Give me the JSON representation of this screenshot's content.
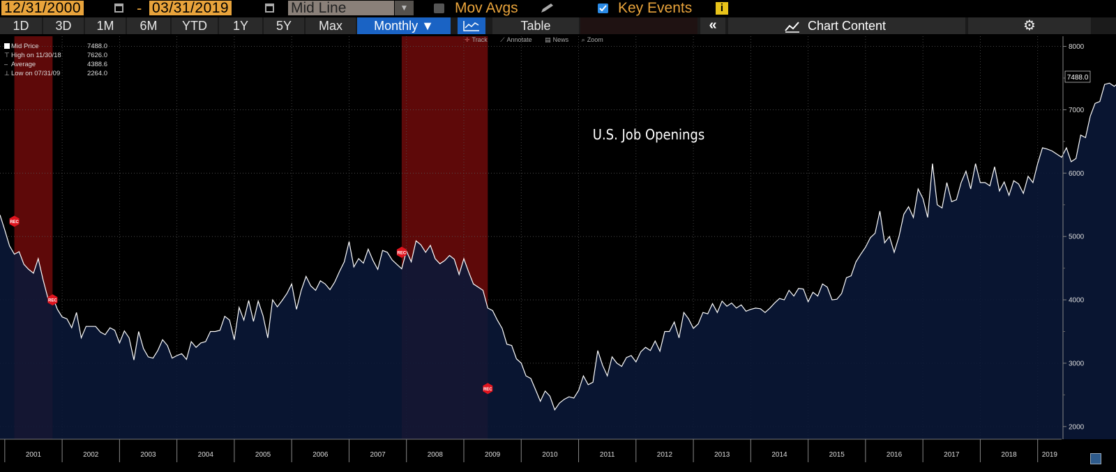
{
  "toolbar": {
    "start_date": "12/31/2000",
    "end_date": "03/31/2019",
    "date_dash": "-",
    "line_type": "Mid Line",
    "mov_avgs_label": "Mov Avgs",
    "key_events_label": "Key Events",
    "info_glyph": "i"
  },
  "periods": [
    {
      "label": "1D",
      "selected": false
    },
    {
      "label": "3D",
      "selected": false
    },
    {
      "label": "1M",
      "selected": false
    },
    {
      "label": "6M",
      "selected": false
    },
    {
      "label": "YTD",
      "selected": false
    },
    {
      "label": "1Y",
      "selected": false
    },
    {
      "label": "5Y",
      "selected": false
    },
    {
      "label": "Max",
      "selected": false
    },
    {
      "label": "Monthly ▼",
      "selected": true
    }
  ],
  "buttons": {
    "table_label": "Table",
    "collapse_glyph": "«",
    "chart_content_label": "Chart Content",
    "settings_glyph": "⚙"
  },
  "sub_tools": {
    "track": "Track",
    "annotate": "Annotate",
    "news": "News",
    "zoom": "Zoom"
  },
  "legend": {
    "mid_label": "Mid Price",
    "mid_value": "7488.0",
    "high_label": "High on 11/30/18",
    "high_value": "7626.0",
    "avg_label": "Average",
    "avg_value": "4388.6",
    "low_label": "Low on 07/31/09",
    "low_value": "2264.0"
  },
  "colors": {
    "accent_orange": "#e8a33b",
    "selected_blue": "#1a63c4",
    "series_line": "#ffffff",
    "area_fill": "#0a1838",
    "recession_band": "#6e0b0b"
  },
  "chart_data": {
    "type": "area",
    "title": "U.S. Job Openings",
    "frequency": "Monthly",
    "x_start": 2000.917,
    "x_step_years": 0.0833333,
    "values": [
      5340,
      5100,
      4850,
      4720,
      4760,
      4560,
      4480,
      4420,
      4650,
      4320,
      4030,
      4050,
      3850,
      3730,
      3700,
      3560,
      3800,
      3400,
      3580,
      3580,
      3580,
      3490,
      3450,
      3560,
      3520,
      3320,
      3510,
      3400,
      3050,
      3500,
      3230,
      3100,
      3080,
      3200,
      3370,
      3280,
      3080,
      3120,
      3150,
      3060,
      3340,
      3250,
      3320,
      3340,
      3500,
      3500,
      3520,
      3740,
      3680,
      3370,
      3880,
      3680,
      3990,
      3660,
      3980,
      3750,
      3400,
      4000,
      3890,
      3990,
      4100,
      4250,
      3850,
      4150,
      4370,
      4220,
      4150,
      4300,
      4250,
      4160,
      4280,
      4450,
      4600,
      4920,
      4520,
      4650,
      4580,
      4800,
      4620,
      4480,
      4780,
      4750,
      4630,
      4560,
      4490,
      4770,
      4600,
      4930,
      4870,
      4750,
      4860,
      4650,
      4570,
      4620,
      4700,
      4640,
      4400,
      4650,
      4440,
      4250,
      4200,
      4150,
      3870,
      3830,
      3680,
      3550,
      3300,
      3280,
      3070,
      3000,
      2800,
      2760,
      2580,
      2400,
      2560,
      2480,
      2264,
      2370,
      2430,
      2470,
      2450,
      2570,
      2800,
      2660,
      2700,
      3200,
      2970,
      2800,
      3100,
      3000,
      2950,
      3090,
      3120,
      3020,
      3180,
      3250,
      3200,
      3350,
      3190,
      3500,
      3500,
      3650,
      3400,
      3800,
      3700,
      3550,
      3620,
      3800,
      3780,
      3940,
      3800,
      3980,
      3900,
      3950,
      3870,
      3920,
      3820,
      3850,
      3870,
      3860,
      3800,
      3870,
      3950,
      4020,
      4000,
      4150,
      4060,
      4180,
      4170,
      3970,
      4120,
      4060,
      4250,
      4200,
      4000,
      4010,
      4100,
      4350,
      4380,
      4600,
      4720,
      4830,
      4980,
      5050,
      5400,
      4900,
      5000,
      4750,
      5000,
      5350,
      5470,
      5300,
      5750,
      5600,
      5300,
      6150,
      5500,
      5450,
      5850,
      5550,
      5580,
      5850,
      6030,
      5750,
      6150,
      5850,
      5850,
      5800,
      6100,
      5720,
      5860,
      5650,
      5880,
      5830,
      5680,
      5950,
      5850,
      6150,
      6400,
      6380,
      6350,
      6300,
      6250,
      6400,
      6180,
      6230,
      6600,
      6560,
      6900,
      7100,
      7130,
      7400,
      7420,
      7370,
      7430,
      7600,
      7626,
      7560,
      7500,
      7630,
      7150,
      7488
    ],
    "ylim": [
      1800,
      8050
    ],
    "yticks": [
      2000,
      3000,
      4000,
      5000,
      6000,
      7000,
      8000
    ],
    "xlim": [
      2000.917,
      2019.417
    ],
    "year_labels": [
      "2001",
      "2002",
      "2003",
      "2004",
      "2005",
      "2006",
      "2007",
      "2008",
      "2009",
      "2010",
      "2011",
      "2012",
      "2013",
      "2014",
      "2015",
      "2016",
      "2017",
      "2018",
      "2019"
    ],
    "recessions": [
      {
        "start": 2001.167,
        "end": 2001.833
      },
      {
        "start": 2007.917,
        "end": 2009.417
      }
    ],
    "event_markers": [
      {
        "x": 2001.167,
        "y": 5240,
        "label": "REC"
      },
      {
        "x": 2001.833,
        "y": 4000,
        "label": "REC"
      },
      {
        "x": 2007.917,
        "y": 4750,
        "label": "REC"
      },
      {
        "x": 2009.417,
        "y": 2600,
        "label": "REC"
      }
    ],
    "last_value_label": "7488.0",
    "legend": [
      "Mid Price",
      "High on 11/30/18",
      "Average",
      "Low on 07/31/09"
    ]
  }
}
